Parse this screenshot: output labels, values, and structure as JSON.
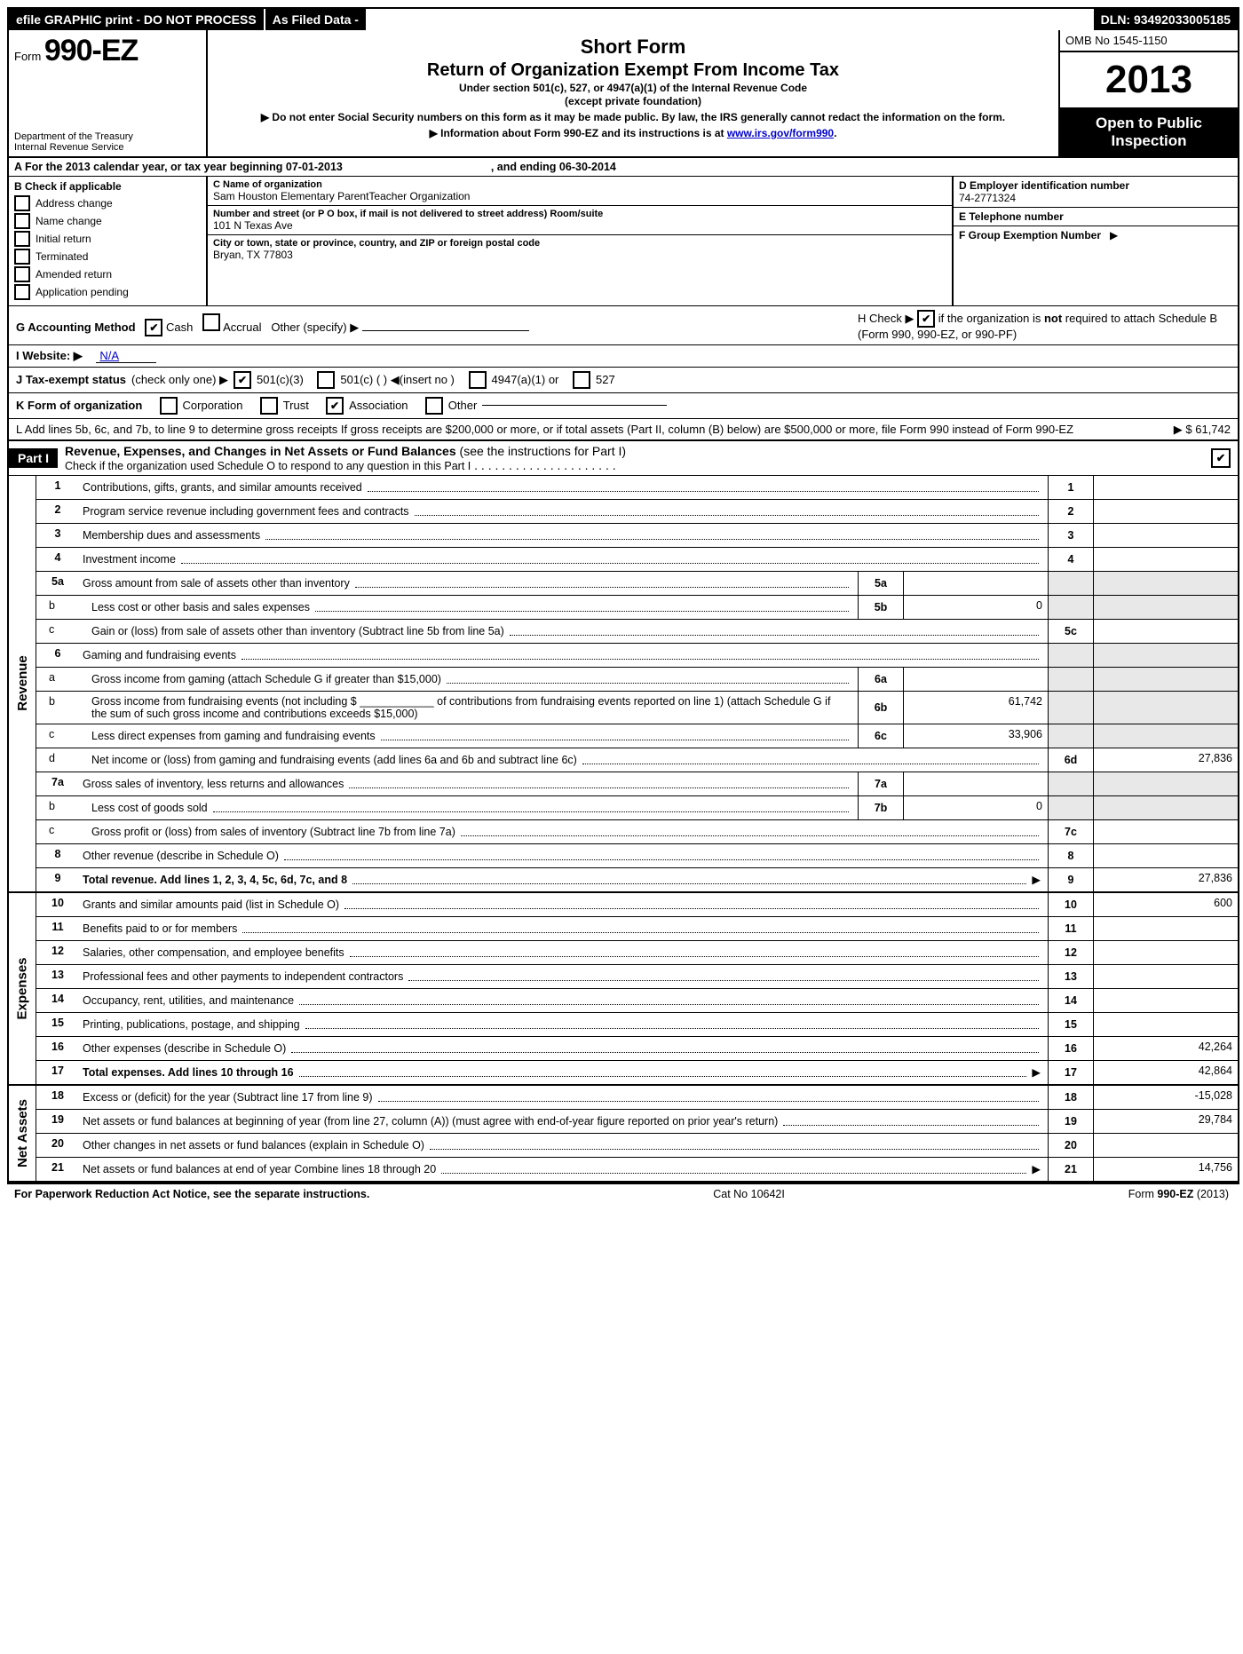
{
  "topbar": {
    "left": "efile GRAPHIC print - DO NOT PROCESS",
    "mid": "As Filed Data -",
    "right": "DLN: 93492033005185"
  },
  "header": {
    "form_prefix": "Form",
    "form_number": "990-EZ",
    "dept1": "Department of the Treasury",
    "dept2": "Internal Revenue Service",
    "title1": "Short Form",
    "title2": "Return of Organization Exempt From Income Tax",
    "sub1": "Under section 501(c), 527, or 4947(a)(1) of the Internal Revenue Code",
    "sub2": "(except private foundation)",
    "note1": "▶ Do not enter Social Security numbers on this form as it may be made public. By law, the IRS generally cannot redact the information on the form.",
    "note2_pre": "▶ Information about Form 990-EZ and its instructions is at ",
    "note2_link": "www.irs.gov/form990",
    "note2_post": ".",
    "omb": "OMB No  1545-1150",
    "year": "2013",
    "open1": "Open to Public",
    "open2": "Inspection"
  },
  "A": {
    "text_pre": "A  For the 2013 calendar year, or tax year beginning ",
    "begin": "07-01-2013",
    "mid": ", and ending ",
    "end": "06-30-2014"
  },
  "B": {
    "header": "B  Check if applicable",
    "items": [
      "Address change",
      "Name change",
      "Initial return",
      "Terminated",
      "Amended return",
      "Application pending"
    ]
  },
  "C": {
    "name_lab": "C Name of organization",
    "name": "Sam Houston Elementary ParentTeacher Organization",
    "street_lab": "Number and street (or P  O  box, if mail is not delivered to street address) Room/suite",
    "street": "101 N Texas Ave",
    "city_lab": "City or town, state or province, country, and ZIP or foreign postal code",
    "city": "Bryan, TX  77803"
  },
  "DEF": {
    "D_lab": "D Employer identification number",
    "D": "74-2771324",
    "E_lab": "E Telephone number",
    "E": "",
    "F_lab": "F Group Exemption Number",
    "F_arrow": "▶"
  },
  "G": {
    "label": "G Accounting Method",
    "cash": "Cash",
    "accrual": "Accrual",
    "other": "Other (specify) ▶"
  },
  "H": {
    "pre": "H  Check ▶",
    "post1": "if the organization is ",
    "bold": "not",
    "post2": " required to attach Schedule B (Form 990, 990-EZ, or 990-PF)"
  },
  "I": {
    "label": "I Website: ▶",
    "val": "N/A"
  },
  "J": {
    "label": "J Tax-exempt status",
    "note": "(check only one) ▶",
    "o1": "501(c)(3)",
    "o2": "501(c) (   ) ◀(insert no )",
    "o3": "4947(a)(1) or",
    "o4": "527"
  },
  "K": {
    "label": "K Form of organization",
    "o1": "Corporation",
    "o2": "Trust",
    "o3": "Association",
    "o4": "Other"
  },
  "L": {
    "text": "L Add lines 5b, 6c, and 7b, to line 9 to determine gross receipts  If gross receipts are $200,000 or more, or if total assets (Part II, column (B) below) are $500,000 or more, file Form 990 instead of Form 990-EZ",
    "arrow": "▶",
    "val": "$ 61,742"
  },
  "part1": {
    "tag": "Part I",
    "title": "Revenue, Expenses, and Changes in Net Assets or Fund Balances ",
    "note": "(see the instructions for Part I)",
    "sub": "Check if the organization used Schedule O to respond to any question in this Part I",
    "chk": "✔"
  },
  "rows": {
    "1": {
      "n": "1",
      "d": "Contributions, gifts, grants, and similar amounts received",
      "box": "1",
      "v": ""
    },
    "2": {
      "n": "2",
      "d": "Program service revenue including government fees and contracts",
      "box": "2",
      "v": ""
    },
    "3": {
      "n": "3",
      "d": "Membership dues and assessments",
      "box": "3",
      "v": ""
    },
    "4": {
      "n": "4",
      "d": "Investment income",
      "box": "4",
      "v": ""
    },
    "5a": {
      "n": "5a",
      "d": "Gross amount from sale of assets other than inventory",
      "ibox": "5a",
      "iv": ""
    },
    "5b": {
      "n": "b",
      "d": "Less  cost or other basis and sales expenses",
      "ibox": "5b",
      "iv": "0"
    },
    "5c": {
      "n": "c",
      "d": "Gain or (loss) from sale of assets other than inventory (Subtract line 5b from line 5a)",
      "box": "5c",
      "v": ""
    },
    "6": {
      "n": "6",
      "d": "Gaming and fundraising events"
    },
    "6a": {
      "n": "a",
      "d": "Gross income from gaming (attach Schedule G if greater than $15,000)",
      "ibox": "6a",
      "iv": ""
    },
    "6b": {
      "n": "b",
      "d": "Gross income from fundraising events (not including $ ____________ of contributions from fundraising events reported on line 1) (attach Schedule G if the sum of such gross income and contributions exceeds $15,000)",
      "ibox": "6b",
      "iv": "61,742"
    },
    "6c": {
      "n": "c",
      "d": "Less  direct expenses from gaming and fundraising events",
      "ibox": "6c",
      "iv": "33,906"
    },
    "6d": {
      "n": "d",
      "d": "Net income or (loss) from gaming and fundraising events (add lines 6a and 6b and subtract line 6c)",
      "box": "6d",
      "v": "27,836"
    },
    "7a": {
      "n": "7a",
      "d": "Gross sales of inventory, less returns and allowances",
      "ibox": "7a",
      "iv": ""
    },
    "7b": {
      "n": "b",
      "d": "Less  cost of goods sold",
      "ibox": "7b",
      "iv": "0"
    },
    "7c": {
      "n": "c",
      "d": "Gross profit or (loss) from sales of inventory (Subtract line 7b from line 7a)",
      "box": "7c",
      "v": ""
    },
    "8": {
      "n": "8",
      "d": "Other revenue (describe in Schedule O)",
      "box": "8",
      "v": ""
    },
    "9": {
      "n": "9",
      "d": "Total revenue. Add lines 1, 2, 3, 4, 5c, 6d, 7c, and 8",
      "box": "9",
      "v": "27,836",
      "bold": true,
      "arrow": true
    },
    "10": {
      "n": "10",
      "d": "Grants and similar amounts paid (list in Schedule O)",
      "box": "10",
      "v": "600"
    },
    "11": {
      "n": "11",
      "d": "Benefits paid to or for members",
      "box": "11",
      "v": ""
    },
    "12": {
      "n": "12",
      "d": "Salaries, other compensation, and employee benefits",
      "box": "12",
      "v": ""
    },
    "13": {
      "n": "13",
      "d": "Professional fees and other payments to independent contractors",
      "box": "13",
      "v": ""
    },
    "14": {
      "n": "14",
      "d": "Occupancy, rent, utilities, and maintenance",
      "box": "14",
      "v": ""
    },
    "15": {
      "n": "15",
      "d": "Printing, publications, postage, and shipping",
      "box": "15",
      "v": ""
    },
    "16": {
      "n": "16",
      "d": "Other expenses (describe in Schedule O)",
      "box": "16",
      "v": "42,264"
    },
    "17": {
      "n": "17",
      "d": "Total expenses. Add lines 10 through 16",
      "box": "17",
      "v": "42,864",
      "bold": true,
      "arrow": true
    },
    "18": {
      "n": "18",
      "d": "Excess or (deficit) for the year (Subtract line 17 from line 9)",
      "box": "18",
      "v": "-15,028"
    },
    "19": {
      "n": "19",
      "d": "Net assets or fund balances at beginning of year (from line 27, column (A)) (must agree with end-of-year figure reported on prior year's return)",
      "box": "19",
      "v": "29,784"
    },
    "20": {
      "n": "20",
      "d": "Other changes in net assets or fund balances (explain in Schedule O)",
      "box": "20",
      "v": ""
    },
    "21": {
      "n": "21",
      "d": "Net assets or fund balances at end of year  Combine lines 18 through 20",
      "box": "21",
      "v": "14,756",
      "arrow": true
    }
  },
  "sections": {
    "revenue": "Revenue",
    "expenses": "Expenses",
    "netassets": "Net Assets"
  },
  "footer": {
    "left": "For Paperwork Reduction Act Notice, see the separate instructions.",
    "mid": "Cat  No  10642I",
    "right_pre": "Form ",
    "right_bold": "990-EZ",
    "right_post": " (2013)"
  }
}
